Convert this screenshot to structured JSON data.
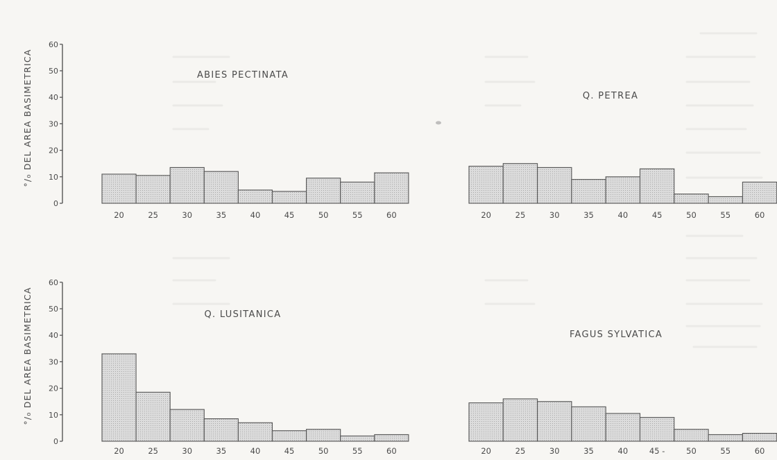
{
  "colors": {
    "paper": "#f7f6f3",
    "ink": "#4a4a4a",
    "bar_fill": "#dcdcdc",
    "bar_stroke": "#555555"
  },
  "y_axis_label": "°/₀ DEL AREA BASIMETRICA",
  "chart_data": [
    {
      "type": "bar",
      "title": "ABIES PECTINATA",
      "categories": [
        "20",
        "25",
        "30",
        "35",
        "40",
        "45",
        "50",
        "55",
        "60"
      ],
      "values": [
        11,
        10.5,
        13.5,
        12,
        5,
        4.5,
        9.5,
        8,
        11.5
      ],
      "ylabel": "°/₀ DEL AREA BASIMETRICA",
      "ylim": [
        0,
        60
      ],
      "yticks": [
        0,
        10,
        20,
        30,
        40,
        50,
        60
      ],
      "grid": false
    },
    {
      "type": "bar",
      "title": "Q. PETREA",
      "categories": [
        "20",
        "25",
        "30",
        "35",
        "40",
        "45",
        "50",
        "55",
        "60"
      ],
      "values": [
        14,
        15,
        13.5,
        9,
        10,
        13,
        3.5,
        2.5,
        8
      ],
      "ylabel": "",
      "ylim": [
        0,
        60
      ],
      "yticks": [],
      "grid": false
    },
    {
      "type": "bar",
      "title": "Q. LUSITANICA",
      "categories": [
        "20",
        "25",
        "30",
        "35",
        "40",
        "45",
        "50",
        "55",
        "60"
      ],
      "values": [
        33,
        18.5,
        12,
        8.5,
        7,
        4,
        4.5,
        2,
        2.5
      ],
      "ylabel": "°/₀ DEL AREA BASIMETRICA",
      "ylim": [
        0,
        60
      ],
      "yticks": [
        0,
        10,
        20,
        30,
        40,
        50,
        60
      ],
      "grid": false
    },
    {
      "type": "bar",
      "title": "FAGUS SYLVATICA",
      "categories": [
        "20",
        "25",
        "30",
        "35",
        "40",
        "45 -",
        "50",
        "55",
        "60"
      ],
      "values": [
        14.5,
        16,
        15,
        13,
        10.5,
        9,
        4.5,
        2.5,
        3
      ],
      "ylabel": "",
      "ylim": [
        0,
        60
      ],
      "yticks": [],
      "grid": false
    }
  ]
}
